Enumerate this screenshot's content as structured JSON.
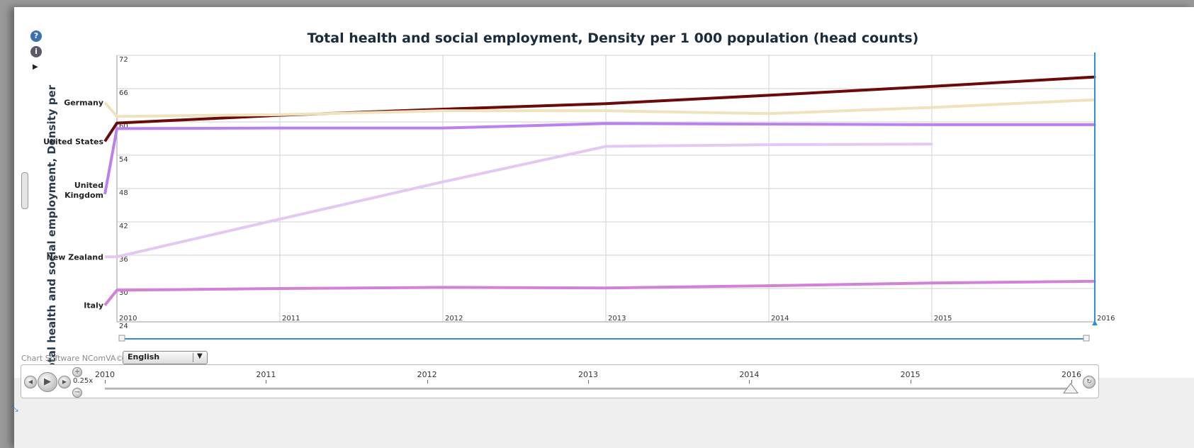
{
  "chart_data": {
    "type": "line",
    "title": "Total health and social employment, Density per 1 000 population (head counts)",
    "ylabel": "Total health and social employment, Density per",
    "xlabel": "",
    "x": [
      2010,
      2011,
      2012,
      2013,
      2014,
      2015,
      2016
    ],
    "x_tick_labels": [
      "2010",
      "2011",
      "2012",
      "2013",
      "2014",
      "2015",
      "2016"
    ],
    "xlim": [
      2010,
      2016
    ],
    "ylim": [
      24,
      72
    ],
    "y_ticks": [
      24,
      30,
      36,
      42,
      48,
      54,
      60,
      66,
      72
    ],
    "grid": true,
    "series": [
      {
        "name": "United States",
        "color": "#6b0a0a",
        "values": [
          59.8,
          61.2,
          62.3,
          63.3,
          64.8,
          66.4,
          68.1
        ],
        "label_value": 56.5
      },
      {
        "name": "Germany",
        "color": "#efe2be",
        "values": [
          61.0,
          61.3,
          62.0,
          62.0,
          61.5,
          62.6,
          64.0
        ],
        "label_value": 63.5
      },
      {
        "name": "United Kingdom",
        "color": "#bb80f0",
        "values": [
          58.8,
          58.9,
          58.9,
          59.7,
          59.6,
          59.5,
          59.5
        ],
        "label_value": 47.0
      },
      {
        "name": "New Zealand",
        "color": "#e4c8f4",
        "values": [
          35.7,
          42.5,
          49.2,
          55.6,
          55.9,
          56.0,
          null
        ],
        "label_value": 35.7
      },
      {
        "name": "Italy",
        "color": "#d280d8",
        "values": [
          29.7,
          30.0,
          30.2,
          30.1,
          30.5,
          31.0,
          31.3
        ],
        "label_value": 27.0
      }
    ],
    "current_year": "2016"
  },
  "controls": {
    "speed": "0.25x",
    "timeline_years": [
      "2010",
      "2011",
      "2012",
      "2013",
      "2014",
      "2015",
      "2016"
    ],
    "language": "English",
    "software_credit": "Chart Software NComVA©"
  },
  "icons": {
    "help": "help-icon",
    "info": "info-icon",
    "play": "play-icon",
    "prev": "previous-icon",
    "next": "next-icon",
    "loop": "loop-icon",
    "resize": "resize-icon"
  }
}
